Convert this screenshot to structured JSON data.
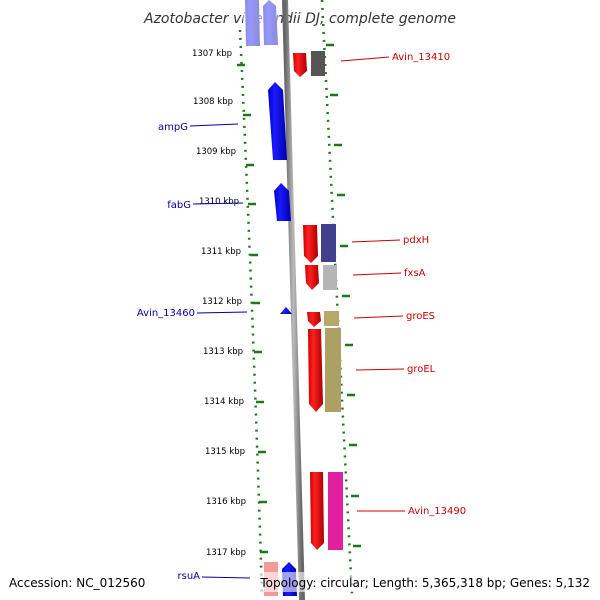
{
  "title": "Azotobacter vinelandii DJ, complete genome",
  "footer": {
    "accession": "Accession: NC_012560",
    "summary": "Topology: circular; Length: 5,365,318 bp; Genes: 5,132"
  },
  "ruler_labels": [
    "1307 kbp",
    "1308 kbp",
    "1309 kbp",
    "1310 kbp",
    "1311 kbp",
    "1312 kbp",
    "1313 kbp",
    "1314 kbp",
    "1315 kbp",
    "1316 kbp",
    "1317 kbp"
  ],
  "colors": {
    "reverse_strand": "#0000ee",
    "forward_strand": "#ee0000",
    "reverse_label": "#0000aa",
    "forward_label": "#cc0000",
    "backbone": "#888888",
    "ruler_ticks": "#1a7a1a"
  },
  "gene_labels": {
    "left": [
      "ampG",
      "fabG",
      "Avin_13460",
      "rsuA"
    ],
    "right": [
      "Avin_13410",
      "pdxH",
      "fxsA",
      "groES",
      "groEL",
      "Avin_13490"
    ]
  }
}
